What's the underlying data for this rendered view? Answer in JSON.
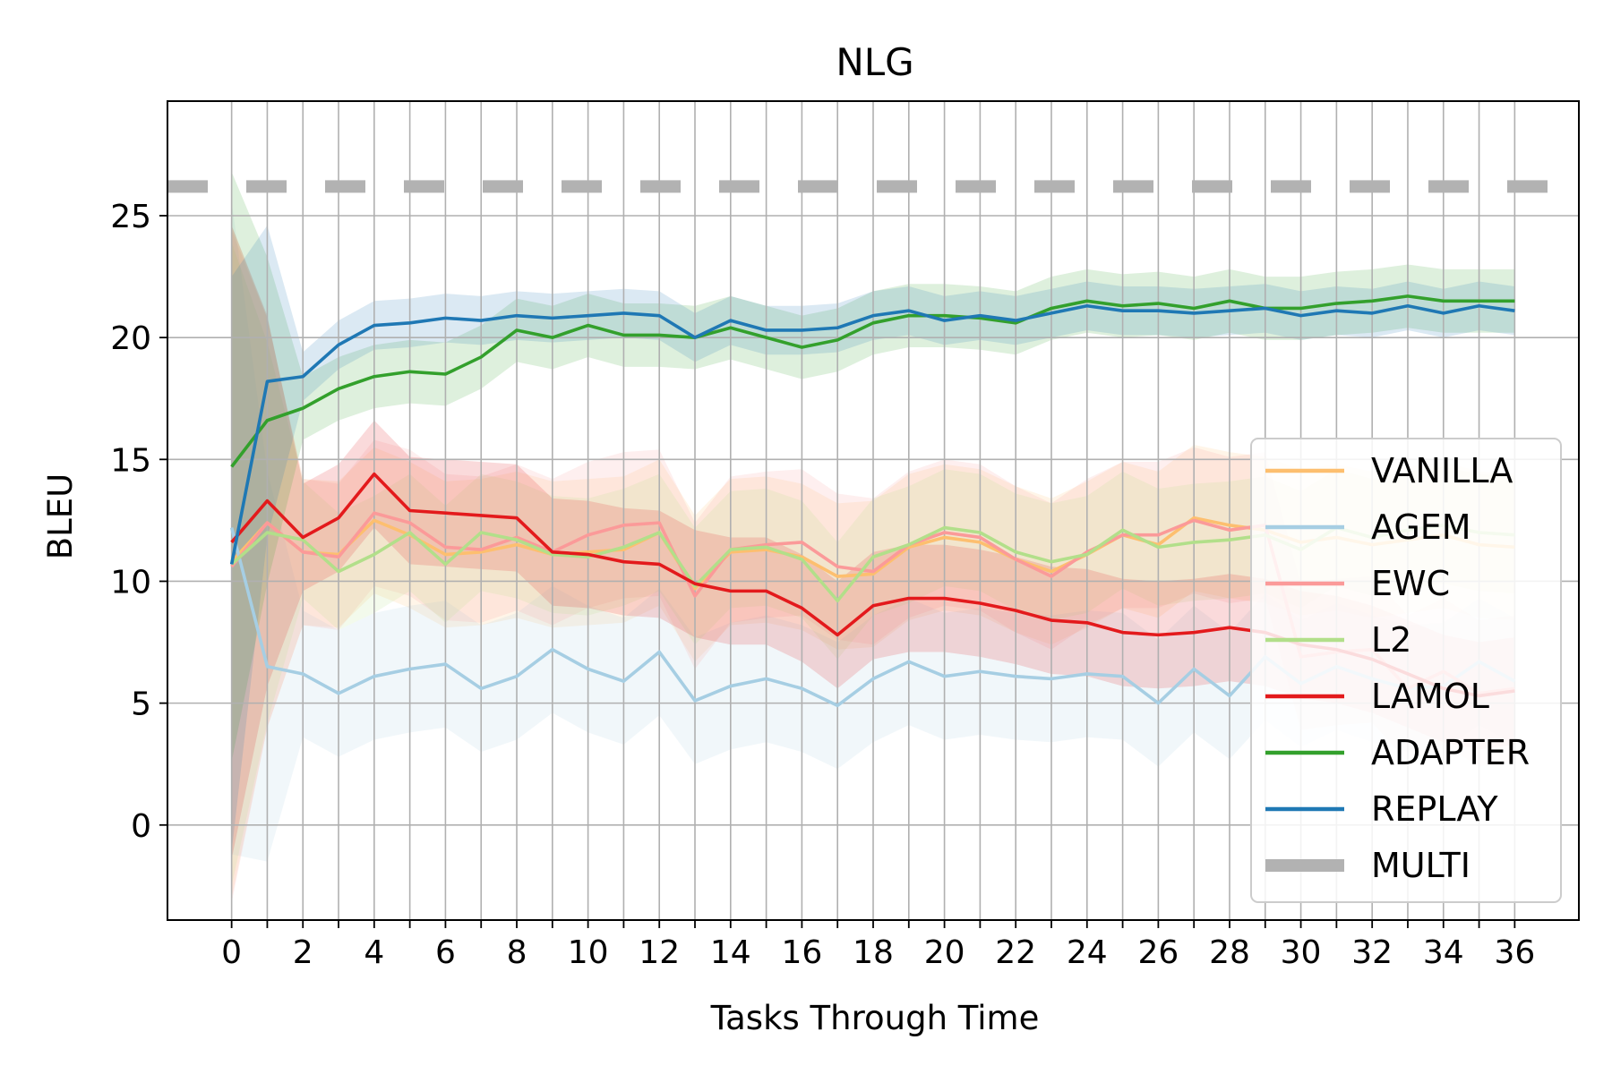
{
  "chart_data": {
    "type": "line",
    "title": "NLG",
    "xlabel": "Tasks Through Time",
    "ylabel": "BLEU",
    "xlim": [
      -1.8,
      37.8
    ],
    "ylim": [
      -3.9,
      29.7
    ],
    "xticks": [
      0,
      2,
      4,
      6,
      8,
      10,
      12,
      14,
      16,
      18,
      20,
      22,
      24,
      26,
      28,
      30,
      32,
      34,
      36
    ],
    "yticks": [
      0,
      5,
      10,
      15,
      20,
      25
    ],
    "grid": true,
    "legend_position": "lower-right",
    "series": [
      {
        "name": "VANILLA",
        "color": "#fdbf6f",
        "band_spread": 3.0,
        "values": [
          10.8,
          12.4,
          11.2,
          11.1,
          12.5,
          11.9,
          11.1,
          11.2,
          11.5,
          11.1,
          11.2,
          11.3,
          12.0,
          9.7,
          11.2,
          11.3,
          11.0,
          10.2,
          10.3,
          11.4,
          11.8,
          11.6,
          10.9,
          10.4,
          11.1,
          11.9,
          11.5,
          12.6,
          12.3,
          12.1,
          11.6,
          11.8,
          11.5,
          11.7,
          11.9,
          11.5,
          11.4
        ]
      },
      {
        "name": "AGEM",
        "color": "#a6cee3",
        "band_spread": 2.6,
        "values": [
          12.2,
          6.5,
          6.2,
          5.4,
          6.1,
          6.4,
          6.6,
          5.6,
          6.1,
          7.2,
          6.4,
          5.9,
          7.1,
          5.1,
          5.7,
          6.0,
          5.6,
          4.9,
          6.0,
          6.7,
          6.1,
          6.3,
          6.1,
          6.0,
          6.2,
          6.1,
          5.0,
          6.4,
          5.3,
          6.9,
          5.8,
          6.5,
          6.0,
          5.6,
          5.7,
          6.7,
          5.9
        ]
      },
      {
        "name": "EWC",
        "color": "#fb9a99",
        "band_spread": 3.0,
        "values": [
          10.6,
          12.4,
          11.2,
          11.0,
          12.8,
          12.4,
          11.4,
          11.3,
          11.8,
          11.2,
          11.9,
          12.3,
          12.4,
          9.4,
          11.3,
          11.5,
          11.6,
          10.6,
          10.4,
          11.5,
          12.0,
          11.8,
          10.9,
          10.2,
          11.2,
          11.9,
          11.9,
          12.5,
          12.1,
          12.3,
          6.9,
          7.1,
          7.2,
          5.6,
          6.3,
          5.4,
          5.6
        ]
      },
      {
        "name": "L2",
        "color": "#b2df8a",
        "band_spread": 2.4,
        "values": [
          10.7,
          12.0,
          11.7,
          10.4,
          11.1,
          12.0,
          10.7,
          12.0,
          11.7,
          11.1,
          11.0,
          11.4,
          12.0,
          9.8,
          11.3,
          11.4,
          10.9,
          9.2,
          11.0,
          11.5,
          12.2,
          12.0,
          11.2,
          10.8,
          11.1,
          12.1,
          11.4,
          11.6,
          11.7,
          11.9,
          11.3,
          12.2,
          11.8,
          12.1,
          12.3,
          12.0,
          11.9
        ]
      },
      {
        "name": "LAMOL",
        "color": "#e31a1c",
        "band_spread": 2.2,
        "values": [
          11.6,
          13.3,
          11.8,
          12.6,
          14.4,
          12.9,
          12.8,
          12.7,
          12.6,
          11.2,
          11.1,
          10.8,
          10.7,
          9.9,
          9.6,
          9.6,
          8.9,
          7.8,
          9.0,
          9.3,
          9.3,
          9.1,
          8.8,
          8.4,
          8.3,
          7.9,
          7.8,
          7.9,
          8.1,
          7.9,
          7.4,
          7.2,
          6.8,
          6.2,
          5.6,
          5.3,
          5.5
        ]
      },
      {
        "name": "ADAPTER",
        "color": "#33a02c",
        "band_spread": 1.3,
        "values": [
          14.7,
          16.6,
          17.1,
          17.9,
          18.4,
          18.6,
          18.5,
          19.2,
          20.3,
          20.0,
          20.5,
          20.1,
          20.1,
          20.0,
          20.4,
          20.0,
          19.6,
          19.9,
          20.6,
          20.9,
          20.9,
          20.8,
          20.6,
          21.2,
          21.5,
          21.3,
          21.4,
          21.2,
          21.5,
          21.2,
          21.2,
          21.4,
          21.5,
          21.7,
          21.5,
          21.5,
          21.5
        ]
      },
      {
        "name": "REPLAY",
        "color": "#1f78b4",
        "band_spread": 1.0,
        "values": [
          10.7,
          18.2,
          18.4,
          19.7,
          20.5,
          20.6,
          20.8,
          20.7,
          20.9,
          20.8,
          20.9,
          21.0,
          20.9,
          20.0,
          20.7,
          20.3,
          20.3,
          20.4,
          20.9,
          21.1,
          20.7,
          20.9,
          20.7,
          21.0,
          21.3,
          21.1,
          21.1,
          21.0,
          21.1,
          21.2,
          20.9,
          21.1,
          21.0,
          21.3,
          21.0,
          21.3,
          21.1
        ]
      },
      {
        "name": "MULTI",
        "color": "#b2b2b2",
        "dashed": true,
        "values": [
          26.2
        ]
      }
    ]
  }
}
